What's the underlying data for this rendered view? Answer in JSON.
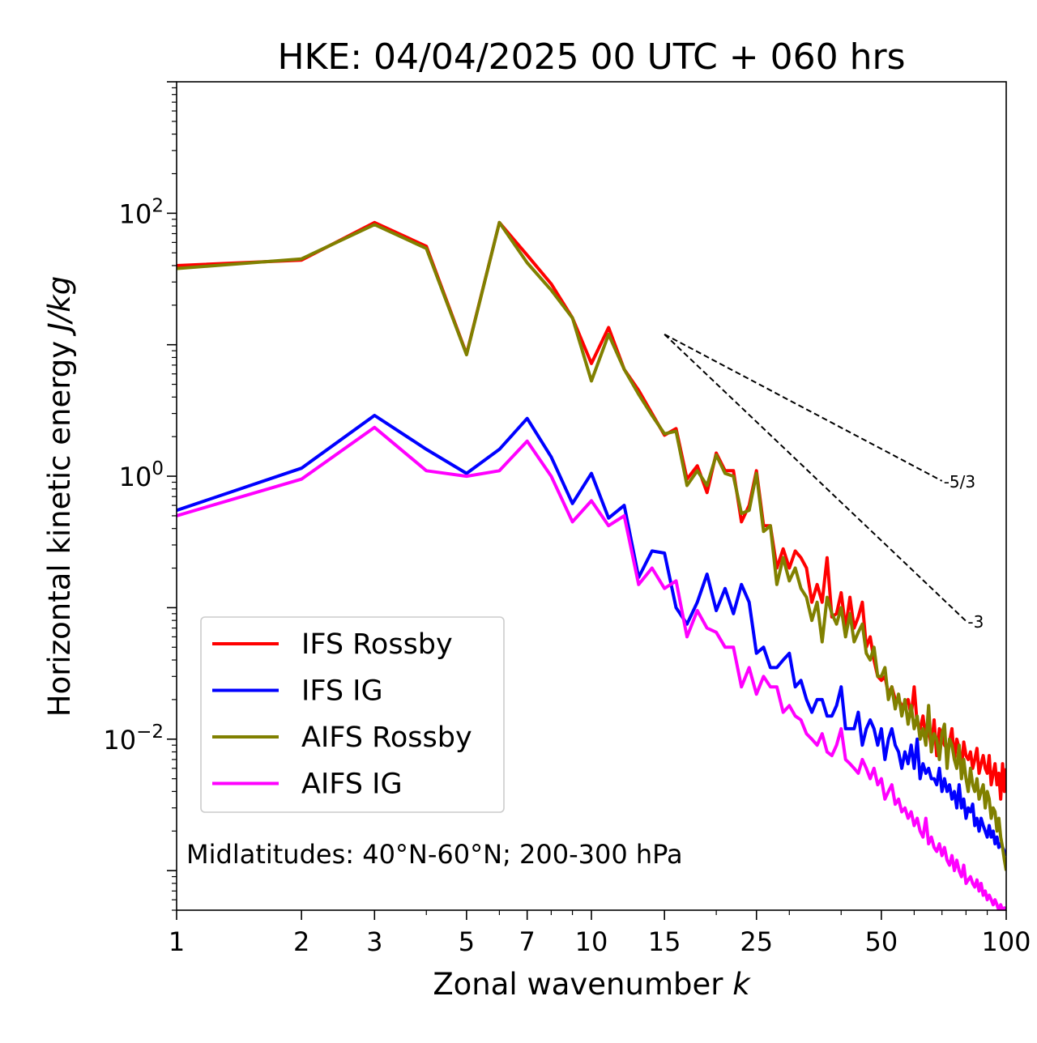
{
  "chart_data": {
    "type": "line",
    "title": "HKE: 04/04/2025 00 UTC + 060 hrs",
    "xlabel_text": "Zonal wavenumber ",
    "xlabel_var": "k",
    "ylabel_text": "Horizontal kinetic energy ",
    "ylabel_unit": "J/kg",
    "xscale": "log",
    "yscale": "log",
    "xlim": [
      1,
      100
    ],
    "ylim": [
      0.0005,
      1000
    ],
    "grid": false,
    "legend_position": "lower-left",
    "x_ticks": [
      {
        "value": 1,
        "label": "1"
      },
      {
        "value": 2,
        "label": "2"
      },
      {
        "value": 3,
        "label": "3"
      },
      {
        "value": 5,
        "label": "5"
      },
      {
        "value": 7,
        "label": "7"
      },
      {
        "value": 10,
        "label": "10"
      },
      {
        "value": 15,
        "label": "15"
      },
      {
        "value": 25,
        "label": "25"
      },
      {
        "value": 50,
        "label": "50"
      },
      {
        "value": 100,
        "label": "100"
      }
    ],
    "y_ticks": [
      {
        "value": 100,
        "base": "10",
        "exp": "2"
      },
      {
        "value": 1,
        "base": "10",
        "exp": "0"
      },
      {
        "value": 0.01,
        "base": "10",
        "exp": "−2"
      }
    ],
    "annotation": "Midlatitudes: 40°N-60°N; 200-300 hPa",
    "reference_lines": [
      {
        "label": "-5/3",
        "slope": -1.6667,
        "x_start": 15,
        "y_start": 12,
        "x_end": 70
      },
      {
        "label": "-3",
        "slope": -3,
        "x_start": 15,
        "y_start": 12,
        "x_end": 80
      }
    ],
    "series": [
      {
        "name": "IFS Rossby",
        "color": "#ff0000",
        "x": [
          1,
          2,
          3,
          4,
          5,
          6,
          7,
          8,
          9,
          10,
          11,
          12,
          13,
          14,
          15,
          16,
          17,
          18,
          19,
          20,
          21,
          22,
          23,
          24,
          25,
          26,
          27,
          28,
          29,
          30,
          31,
          32,
          33,
          34,
          35,
          36,
          37,
          38,
          39,
          40,
          41,
          42,
          43,
          44,
          45,
          46,
          47,
          48,
          49,
          50,
          51,
          52,
          53,
          54,
          55,
          56,
          57,
          58,
          59,
          60,
          61,
          62,
          63,
          64,
          65,
          66,
          67,
          68,
          69,
          70,
          71,
          72,
          73,
          74,
          75,
          76,
          77,
          78,
          79,
          80,
          81,
          82,
          83,
          84,
          85,
          86,
          87,
          88,
          89,
          90,
          91,
          92,
          93,
          94,
          95,
          96,
          97,
          98,
          99,
          100
        ],
        "y": [
          40,
          44,
          85,
          56,
          8.5,
          85,
          48,
          29,
          16,
          7.2,
          13.5,
          6.5,
          4.5,
          3.0,
          2.05,
          2.3,
          0.95,
          1.2,
          0.75,
          1.5,
          1.1,
          1.1,
          0.45,
          0.6,
          1.1,
          0.42,
          0.42,
          0.2,
          0.28,
          0.2,
          0.27,
          0.24,
          0.2,
          0.11,
          0.15,
          0.11,
          0.24,
          0.085,
          0.09,
          0.13,
          0.07,
          0.12,
          0.07,
          0.085,
          0.11,
          0.05,
          0.06,
          0.04,
          0.03,
          0.028,
          0.03,
          0.022,
          0.025,
          0.02,
          0.02,
          0.018,
          0.018,
          0.02,
          0.015,
          0.025,
          0.013,
          0.012,
          0.015,
          0.01,
          0.012,
          0.0085,
          0.014,
          0.0075,
          0.012,
          0.011,
          0.009,
          0.0085,
          0.0095,
          0.012,
          0.007,
          0.01,
          0.0085,
          0.006,
          0.0095,
          0.0075,
          0.007,
          0.008,
          0.006,
          0.007,
          0.0085,
          0.0055,
          0.0065,
          0.0075,
          0.006,
          0.0055,
          0.0075,
          0.0045,
          0.0055,
          0.0065,
          0.0045,
          0.0055,
          0.0035,
          0.0065,
          0.004,
          0.006
        ]
      },
      {
        "name": "IFS IG",
        "color": "#0000ff",
        "x": [
          1,
          2,
          3,
          4,
          5,
          6,
          7,
          8,
          9,
          10,
          11,
          12,
          13,
          14,
          15,
          16,
          17,
          18,
          19,
          20,
          21,
          22,
          23,
          24,
          25,
          26,
          27,
          28,
          29,
          30,
          31,
          32,
          33,
          34,
          35,
          36,
          37,
          38,
          39,
          40,
          41,
          42,
          43,
          44,
          45,
          46,
          47,
          48,
          49,
          50,
          51,
          52,
          53,
          54,
          55,
          56,
          57,
          58,
          59,
          60,
          61,
          62,
          63,
          64,
          65,
          66,
          67,
          68,
          69,
          70,
          71,
          72,
          73,
          74,
          75,
          76,
          77,
          78,
          79,
          80,
          81,
          82,
          83,
          84,
          85,
          86,
          87,
          88,
          89,
          90,
          91,
          92,
          93,
          94,
          95,
          96,
          97,
          98,
          99,
          100
        ],
        "y": [
          0.55,
          1.15,
          2.9,
          1.6,
          1.05,
          1.6,
          2.75,
          1.4,
          0.62,
          1.05,
          0.48,
          0.6,
          0.17,
          0.27,
          0.26,
          0.1,
          0.075,
          0.11,
          0.18,
          0.095,
          0.14,
          0.09,
          0.15,
          0.11,
          0.045,
          0.05,
          0.035,
          0.035,
          0.04,
          0.045,
          0.025,
          0.028,
          0.02,
          0.016,
          0.02,
          0.02,
          0.015,
          0.015,
          0.018,
          0.025,
          0.012,
          0.012,
          0.012,
          0.016,
          0.009,
          0.012,
          0.014,
          0.012,
          0.009,
          0.012,
          0.007,
          0.01,
          0.012,
          0.009,
          0.008,
          0.006,
          0.008,
          0.0065,
          0.009,
          0.006,
          0.01,
          0.005,
          0.0065,
          0.0055,
          0.006,
          0.005,
          0.005,
          0.0045,
          0.006,
          0.004,
          0.005,
          0.004,
          0.0045,
          0.0035,
          0.004,
          0.003,
          0.0045,
          0.003,
          0.0035,
          0.0025,
          0.003,
          0.0028,
          0.0032,
          0.0022,
          0.0025,
          0.002,
          0.0025,
          0.0022,
          0.002,
          0.0018,
          0.0022,
          0.0018,
          0.002,
          0.0016,
          0.0018,
          0.0015,
          0.0016,
          0.0015,
          0.0014,
          0.0013
        ]
      },
      {
        "name": "AIFS Rossby",
        "color": "#808000",
        "x": [
          1,
          2,
          3,
          4,
          5,
          6,
          7,
          8,
          9,
          10,
          11,
          12,
          13,
          14,
          15,
          16,
          17,
          18,
          19,
          20,
          21,
          22,
          23,
          24,
          25,
          26,
          27,
          28,
          29,
          30,
          31,
          32,
          33,
          34,
          35,
          36,
          37,
          38,
          39,
          40,
          41,
          42,
          43,
          44,
          45,
          46,
          47,
          48,
          49,
          50,
          51,
          52,
          53,
          54,
          55,
          56,
          57,
          58,
          59,
          60,
          61,
          62,
          63,
          64,
          65,
          66,
          67,
          68,
          69,
          70,
          71,
          72,
          73,
          74,
          75,
          76,
          77,
          78,
          79,
          80,
          81,
          82,
          83,
          84,
          85,
          86,
          87,
          88,
          89,
          90,
          91,
          92,
          93,
          94,
          95,
          96,
          97,
          98,
          99,
          100
        ],
        "y": [
          38,
          45,
          82,
          54,
          8.4,
          85,
          42,
          26,
          16,
          5.3,
          12,
          6.5,
          4.2,
          2.9,
          2.1,
          2.2,
          0.85,
          1.1,
          0.85,
          1.45,
          1.05,
          1.0,
          0.52,
          0.55,
          1.05,
          0.38,
          0.42,
          0.15,
          0.24,
          0.16,
          0.2,
          0.14,
          0.12,
          0.08,
          0.11,
          0.055,
          0.12,
          0.09,
          0.075,
          0.1,
          0.06,
          0.09,
          0.055,
          0.065,
          0.075,
          0.045,
          0.04,
          0.05,
          0.03,
          0.03,
          0.035,
          0.02,
          0.025,
          0.017,
          0.022,
          0.015,
          0.02,
          0.013,
          0.018,
          0.012,
          0.015,
          0.01,
          0.012,
          0.009,
          0.018,
          0.008,
          0.011,
          0.01,
          0.007,
          0.011,
          0.013,
          0.006,
          0.01,
          0.009,
          0.007,
          0.006,
          0.009,
          0.005,
          0.007,
          0.005,
          0.004,
          0.006,
          0.0045,
          0.004,
          0.005,
          0.0035,
          0.004,
          0.0045,
          0.003,
          0.004,
          0.0035,
          0.0025,
          0.003,
          0.0028,
          0.002,
          0.0025,
          0.0018,
          0.0015,
          0.0012,
          0.001
        ]
      },
      {
        "name": "AIFS IG",
        "color": "#ff00ff",
        "x": [
          1,
          2,
          3,
          4,
          5,
          6,
          7,
          8,
          9,
          10,
          11,
          12,
          13,
          14,
          15,
          16,
          17,
          18,
          19,
          20,
          21,
          22,
          23,
          24,
          25,
          26,
          27,
          28,
          29,
          30,
          31,
          32,
          33,
          34,
          35,
          36,
          37,
          38,
          39,
          40,
          41,
          42,
          43,
          44,
          45,
          46,
          47,
          48,
          49,
          50,
          51,
          52,
          53,
          54,
          55,
          56,
          57,
          58,
          59,
          60,
          61,
          62,
          63,
          64,
          65,
          66,
          67,
          68,
          69,
          70,
          71,
          72,
          73,
          74,
          75,
          76,
          77,
          78,
          79,
          80,
          81,
          82,
          83,
          84,
          85,
          86,
          87,
          88,
          89,
          90,
          91,
          92,
          93,
          94,
          95,
          96,
          97,
          98,
          99,
          100
        ],
        "y": [
          0.5,
          0.95,
          2.35,
          1.1,
          1.0,
          1.1,
          1.85,
          1.0,
          0.45,
          0.65,
          0.42,
          0.5,
          0.15,
          0.2,
          0.14,
          0.16,
          0.06,
          0.095,
          0.07,
          0.065,
          0.05,
          0.05,
          0.025,
          0.035,
          0.022,
          0.03,
          0.025,
          0.025,
          0.016,
          0.018,
          0.015,
          0.014,
          0.011,
          0.01,
          0.009,
          0.011,
          0.008,
          0.0075,
          0.009,
          0.012,
          0.007,
          0.0065,
          0.006,
          0.0055,
          0.007,
          0.006,
          0.005,
          0.006,
          0.0045,
          0.005,
          0.0035,
          0.004,
          0.0045,
          0.0032,
          0.0035,
          0.0028,
          0.003,
          0.0025,
          0.0028,
          0.0022,
          0.0025,
          0.002,
          0.0018,
          0.0025,
          0.0016,
          0.0018,
          0.0015,
          0.0014,
          0.0016,
          0.0013,
          0.0015,
          0.0012,
          0.0011,
          0.0013,
          0.001,
          0.0012,
          0.001,
          0.0009,
          0.0011,
          0.0008,
          0.00085,
          0.0009,
          0.0008,
          0.00075,
          0.00085,
          0.0007,
          0.0008,
          0.00065,
          0.0007,
          0.0006,
          0.00065,
          0.0006,
          0.00055,
          0.0006,
          0.00055,
          0.0005,
          0.00055,
          0.0005,
          0.00052,
          0.0005
        ]
      }
    ]
  }
}
